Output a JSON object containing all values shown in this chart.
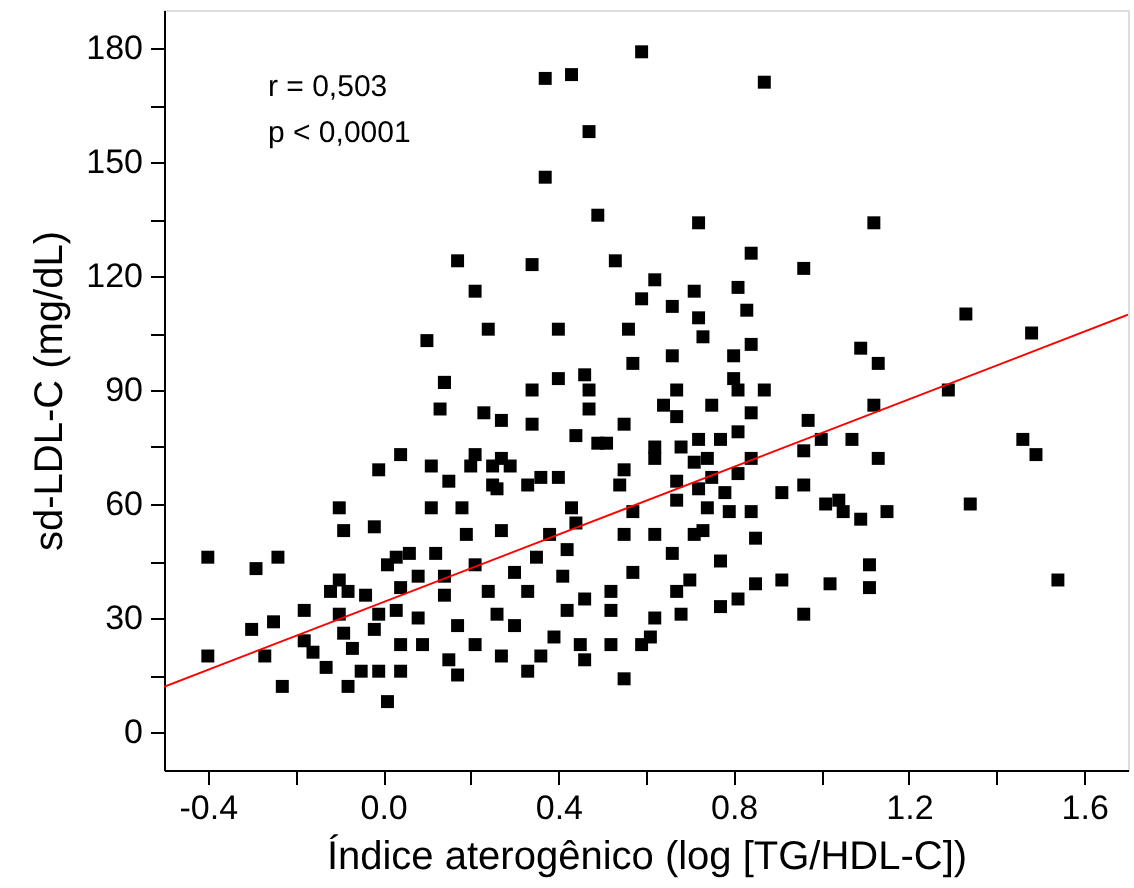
{
  "chart_data": {
    "type": "scatter",
    "xlabel": "Índice aterogênico (log [TG/HDL-C])",
    "ylabel": "sd-LDL-C (mg/dL)",
    "annotations": [
      "r = 0,503",
      "p < 0,0001"
    ],
    "xlim": [
      -0.5,
      1.7
    ],
    "ylim": [
      -10,
      190
    ],
    "xticks": [
      {
        "value": -0.4,
        "label": "-0.4"
      },
      {
        "value": -0.2,
        "label": null
      },
      {
        "value": 0,
        "label": "0.0"
      },
      {
        "value": 0.2,
        "label": null
      },
      {
        "value": 0.4,
        "label": "0.4"
      },
      {
        "value": 0.6,
        "label": null
      },
      {
        "value": 0.8,
        "label": "0.8"
      },
      {
        "value": 1.0,
        "label": null
      },
      {
        "value": 1.2,
        "label": "1.2"
      },
      {
        "value": 1.4,
        "label": null
      },
      {
        "value": 1.6,
        "label": "1.6"
      }
    ],
    "yticks": [
      0,
      {
        "value": 15,
        "label": null
      },
      30,
      {
        "value": 45,
        "label": null
      },
      60,
      {
        "value": 75,
        "label": null
      },
      90,
      {
        "value": 105,
        "label": null
      },
      120,
      {
        "value": 135,
        "label": null
      },
      150,
      {
        "value": 165,
        "label": null
      },
      180
    ],
    "grid": false,
    "legend": false,
    "series": [
      {
        "type": "scatter",
        "marker": "square",
        "color": "#000000",
        "x": [
          0.59,
          0.37,
          0.43,
          0.47,
          0.37,
          0.49,
          0.17,
          0.34,
          0.53,
          0.21,
          0.59,
          0.1,
          0.24,
          0.4,
          0.56,
          0.14,
          0.4,
          0.46,
          0.57,
          0.87,
          0.72,
          1.12,
          0.84,
          0.96,
          0.62,
          0.71,
          0.81,
          0.66,
          0.83,
          0.72,
          1.33,
          1.48,
          0.73,
          1.09,
          1.13,
          0.84,
          0.66,
          0.8,
          1.29,
          1.12,
          1.46,
          1.49,
          1.34,
          1.54,
          1.07,
          1.13,
          0.97,
          1.0,
          0.96,
          0.96,
          1.01,
          1.04,
          1.05,
          1.09,
          1.15,
          0.91,
          1.11,
          1.11,
          1.02,
          0.91,
          0.96,
          0.85,
          0.77,
          0.85,
          0.81,
          0.77,
          0.68,
          0.61,
          0.62,
          0.67,
          0.7,
          0.66,
          0.62,
          0.71,
          0.73,
          0.84,
          0.79,
          0.74,
          0.78,
          0.72,
          0.67,
          0.67,
          0.75,
          0.81,
          0.84,
          0.74,
          0.71,
          0.62,
          0.62,
          0.68,
          0.72,
          0.77,
          0.81,
          0.64,
          0.67,
          0.75,
          0.84,
          0.67,
          0.81,
          0.87,
          0.8,
          -0.4,
          -0.4,
          -0.29,
          -0.24,
          -0.3,
          -0.25,
          -0.27,
          -0.23,
          -0.18,
          0.01,
          -0.1,
          -0.09,
          -0.02,
          -0.01,
          0.04,
          0.11,
          0.14,
          0.13,
          0.23,
          0.27,
          0.34,
          0.34,
          0.15,
          0.11,
          0.18,
          0.21,
          0.2,
          0.25,
          0.26,
          0.25,
          0.27,
          0.29,
          0.33,
          0.36,
          0.4,
          0.47,
          0.47,
          0.44,
          0.49,
          -0.18,
          -0.16,
          -0.13,
          -0.1,
          -0.12,
          -0.08,
          -0.04,
          -0.1,
          -0.09,
          -0.08,
          -0.07,
          -0.05,
          -0.01,
          -0.02,
          -0.01,
          0.01,
          0.03,
          0.06,
          0.04,
          0.03,
          0.04,
          0.04,
          0.08,
          0.08,
          0.09,
          0.12,
          0.14,
          0.14,
          0.15,
          0.17,
          0.17,
          0.19,
          0.21,
          0.21,
          0.24,
          0.26,
          0.27,
          0.27,
          0.3,
          0.3,
          0.33,
          0.33,
          0.35,
          0.36,
          0.38,
          0.39,
          0.41,
          0.42,
          0.43,
          0.42,
          0.45,
          0.46,
          0.46,
          0.44,
          0.52,
          0.52,
          0.55,
          0.52,
          0.55,
          0.57,
          0.59,
          0.57,
          0.54,
          0.55,
          0.55,
          0.51
        ],
        "values": [
          179,
          172,
          173,
          158,
          146,
          136,
          124,
          123,
          124,
          116,
          114,
          103,
          106,
          106,
          106,
          92,
          93,
          94,
          97,
          171,
          134,
          134,
          126,
          122,
          119,
          116,
          117,
          112,
          111,
          109,
          110,
          105,
          104,
          101,
          97,
          102,
          99,
          99,
          90,
          86,
          77,
          73,
          60,
          40,
          77,
          72,
          82,
          77,
          74,
          65,
          60,
          61,
          58,
          56,
          58,
          63,
          44,
          38,
          39,
          40,
          31,
          51,
          45,
          39,
          35,
          33,
          31,
          25,
          30,
          37,
          40,
          47,
          52,
          52,
          53,
          58,
          58,
          59,
          63,
          64,
          61,
          66,
          67,
          68,
          72,
          72,
          71,
          72,
          75,
          75,
          77,
          77,
          79,
          86,
          83,
          86,
          84,
          90,
          90,
          90,
          93,
          46,
          20,
          43,
          46,
          27,
          29,
          20,
          12,
          32,
          8,
          59,
          53,
          54,
          69,
          73,
          70,
          92,
          85,
          84,
          82,
          90,
          81,
          66,
          59,
          59,
          73,
          70,
          65,
          64,
          70,
          72,
          70,
          65,
          67,
          67,
          90,
          85,
          78,
          76,
          24,
          21,
          17,
          40,
          37,
          37,
          36,
          31,
          26,
          12,
          22,
          16,
          16,
          27,
          31,
          44,
          46,
          47,
          38,
          32,
          23,
          16,
          41,
          30,
          23,
          47,
          41,
          36,
          19,
          15,
          28,
          52,
          23,
          44,
          37,
          31,
          20,
          53,
          42,
          28,
          16,
          37,
          46,
          20,
          52,
          25,
          41,
          32,
          59,
          48,
          23,
          19,
          35,
          55,
          37,
          32,
          14,
          23,
          52,
          42,
          23,
          58,
          65,
          69,
          81,
          76
        ]
      },
      {
        "type": "line",
        "color": "#ff0000",
        "x": [
          -0.5,
          1.7
        ],
        "values": [
          11.9,
          109.8
        ]
      }
    ]
  }
}
